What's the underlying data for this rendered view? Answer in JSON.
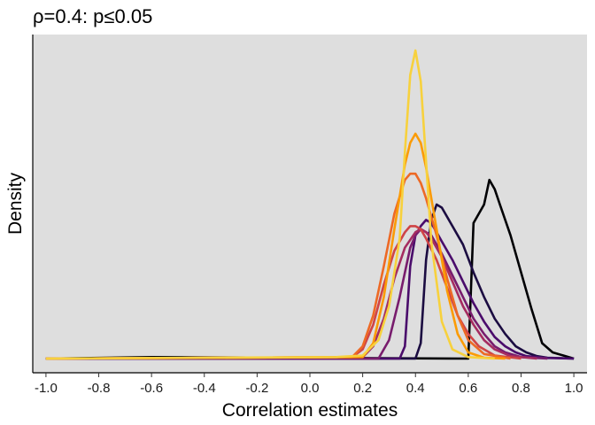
{
  "chart_data": {
    "type": "line",
    "title": "ρ=0.4: p≤0.05",
    "xlabel": "Correlation estimates",
    "ylabel": "Density",
    "xlim": [
      -1.05,
      1.05
    ],
    "ylim": [
      0,
      1.0
    ],
    "xticks": [
      -1.0,
      -0.8,
      -0.6,
      -0.4,
      -0.2,
      0.0,
      0.2,
      0.4,
      0.6,
      0.8,
      1.0
    ],
    "xtick_labels": [
      "-1.0",
      "-0.8",
      "-0.6",
      "-0.4",
      "-0.2",
      "0.0",
      "0.2",
      "0.4",
      "0.6",
      "0.8",
      "1.0"
    ],
    "y_axis_ticks": "none",
    "background": "#dedede",
    "grid": false,
    "legend": "none",
    "series": [
      {
        "color": "#000004",
        "x": [
          -1.0,
          -0.6,
          0.6,
          0.62,
          0.66,
          0.68,
          0.7,
          0.72,
          0.76,
          0.8,
          0.84,
          0.88,
          0.92,
          0.96,
          1.0
        ],
        "y": [
          0.0,
          0.005,
          0.0,
          0.44,
          0.5,
          0.58,
          0.55,
          0.5,
          0.4,
          0.28,
          0.16,
          0.05,
          0.02,
          0.01,
          0.0
        ]
      },
      {
        "color": "#1b0c41",
        "x": [
          -1.0,
          0.4,
          0.42,
          0.44,
          0.46,
          0.48,
          0.5,
          0.54,
          0.58,
          0.62,
          0.66,
          0.7,
          0.74,
          0.78,
          0.82,
          0.86,
          0.9,
          1.0
        ],
        "y": [
          0.0,
          0.0,
          0.05,
          0.32,
          0.45,
          0.5,
          0.49,
          0.43,
          0.37,
          0.28,
          0.2,
          0.13,
          0.08,
          0.04,
          0.02,
          0.008,
          0.003,
          0.0
        ]
      },
      {
        "color": "#4a0c6b",
        "x": [
          -1.0,
          0.34,
          0.36,
          0.38,
          0.4,
          0.42,
          0.44,
          0.46,
          0.48,
          0.5,
          0.54,
          0.58,
          0.62,
          0.66,
          0.7,
          0.74,
          0.78,
          0.82,
          0.9,
          1.0
        ],
        "y": [
          0.0,
          0.0,
          0.04,
          0.3,
          0.4,
          0.43,
          0.45,
          0.44,
          0.41,
          0.38,
          0.32,
          0.25,
          0.18,
          0.12,
          0.07,
          0.04,
          0.02,
          0.008,
          0.002,
          0.0
        ]
      },
      {
        "color": "#781c6d",
        "x": [
          -1.0,
          0.26,
          0.3,
          0.34,
          0.38,
          0.4,
          0.42,
          0.44,
          0.46,
          0.5,
          0.54,
          0.58,
          0.62,
          0.66,
          0.7,
          0.74,
          0.8,
          0.9
        ],
        "y": [
          0.0,
          0.0,
          0.06,
          0.2,
          0.36,
          0.4,
          0.42,
          0.41,
          0.4,
          0.34,
          0.27,
          0.2,
          0.13,
          0.08,
          0.04,
          0.02,
          0.005,
          0.0
        ]
      },
      {
        "color": "#a52c60",
        "x": [
          -1.0,
          0.2,
          0.24,
          0.28,
          0.32,
          0.36,
          0.4,
          0.42,
          0.44,
          0.46,
          0.5,
          0.54,
          0.58,
          0.62,
          0.66,
          0.7,
          0.76,
          0.86
        ],
        "y": [
          0.0,
          0.005,
          0.04,
          0.13,
          0.26,
          0.36,
          0.41,
          0.42,
          0.41,
          0.39,
          0.33,
          0.25,
          0.17,
          0.11,
          0.06,
          0.03,
          0.008,
          0.0
        ]
      },
      {
        "color": "#cf4446",
        "x": [
          -1.0,
          0.16,
          0.2,
          0.24,
          0.28,
          0.32,
          0.36,
          0.38,
          0.4,
          0.42,
          0.44,
          0.48,
          0.52,
          0.56,
          0.6,
          0.64,
          0.7,
          0.8
        ],
        "y": [
          0.0,
          0.005,
          0.03,
          0.11,
          0.24,
          0.35,
          0.41,
          0.43,
          0.43,
          0.42,
          0.39,
          0.32,
          0.23,
          0.14,
          0.08,
          0.04,
          0.01,
          0.0
        ]
      },
      {
        "color": "#ed6925",
        "x": [
          -1.0,
          0.16,
          0.2,
          0.24,
          0.28,
          0.32,
          0.36,
          0.38,
          0.4,
          0.42,
          0.44,
          0.48,
          0.52,
          0.56,
          0.6,
          0.66,
          0.76
        ],
        "y": [
          0.0,
          0.005,
          0.04,
          0.14,
          0.3,
          0.47,
          0.58,
          0.6,
          0.6,
          0.57,
          0.52,
          0.4,
          0.26,
          0.14,
          0.06,
          0.015,
          0.0
        ]
      },
      {
        "color": "#fb9b06",
        "x": [
          -1.0,
          0.2,
          0.24,
          0.28,
          0.32,
          0.36,
          0.38,
          0.4,
          0.42,
          0.44,
          0.48,
          0.52,
          0.56,
          0.6,
          0.66,
          0.74
        ],
        "y": [
          0.0,
          0.005,
          0.05,
          0.2,
          0.42,
          0.63,
          0.7,
          0.73,
          0.7,
          0.62,
          0.42,
          0.22,
          0.08,
          0.02,
          0.003,
          0.0
        ]
      },
      {
        "color": "#f7d13d",
        "x": [
          -1.0,
          -0.4,
          0.1,
          0.2,
          0.26,
          0.3,
          0.34,
          0.36,
          0.38,
          0.4,
          0.42,
          0.44,
          0.46,
          0.5,
          0.54,
          0.6,
          0.7
        ],
        "y": [
          0.0,
          0.003,
          0.005,
          0.01,
          0.06,
          0.17,
          0.39,
          0.67,
          0.92,
          1.0,
          0.9,
          0.64,
          0.38,
          0.12,
          0.03,
          0.005,
          0.0
        ]
      }
    ]
  }
}
